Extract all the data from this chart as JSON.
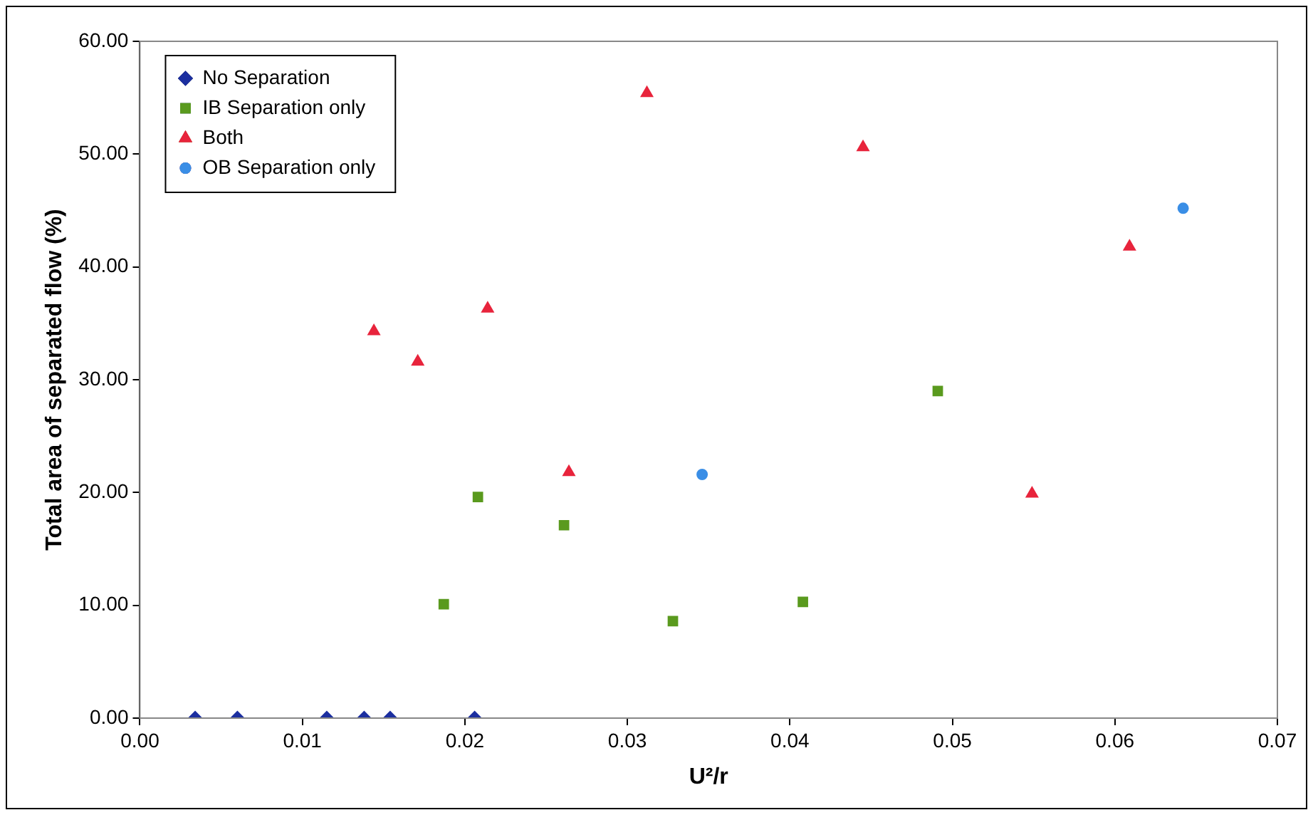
{
  "chart_data": {
    "type": "scatter",
    "xlabel": "U²/r",
    "ylabel": "Total area of separated flow (%)",
    "xlim": [
      0,
      0.07
    ],
    "ylim": [
      0,
      60
    ],
    "xticks": [
      {
        "value": 0,
        "label": "0.00"
      },
      {
        "value": 0.01,
        "label": "0.01"
      },
      {
        "value": 0.02,
        "label": "0.02"
      },
      {
        "value": 0.03,
        "label": "0.03"
      },
      {
        "value": 0.04,
        "label": "0.04"
      },
      {
        "value": 0.05,
        "label": "0.05"
      },
      {
        "value": 0.06,
        "label": "0.06"
      },
      {
        "value": 0.07,
        "label": "0.07"
      }
    ],
    "yticks": [
      {
        "value": 0,
        "label": "0.00"
      },
      {
        "value": 10,
        "label": "10.00"
      },
      {
        "value": 20,
        "label": "20.00"
      },
      {
        "value": 30,
        "label": "30.00"
      },
      {
        "value": 40,
        "label": "40.00"
      },
      {
        "value": 50,
        "label": "50.00"
      },
      {
        "value": 60,
        "label": "60.00"
      }
    ],
    "grid": false,
    "legend": "top left",
    "series": [
      {
        "name": "No Separation",
        "color": "#1c2fa0",
        "marker": "diamond",
        "x": [
          0.0034,
          0.006,
          0.0115,
          0.0138,
          0.0154,
          0.0206
        ],
        "values": [
          0,
          0,
          0,
          0,
          0,
          0
        ]
      },
      {
        "name": "IB Separation only",
        "color": "#5a9a1e",
        "marker": "square",
        "x": [
          0.0187,
          0.0208,
          0.0261,
          0.0328,
          0.0408,
          0.0491
        ],
        "values": [
          10.1,
          19.6,
          17.1,
          8.6,
          10.3,
          29.0
        ]
      },
      {
        "name": "Both",
        "color": "#e8243c",
        "marker": "triangle",
        "x": [
          0.0144,
          0.0171,
          0.0214,
          0.0264,
          0.0312,
          0.0445,
          0.0549,
          0.0609
        ],
        "values": [
          34.3,
          31.6,
          36.3,
          21.8,
          55.4,
          50.6,
          19.9,
          41.8
        ]
      },
      {
        "name": "OB Separation only",
        "color": "#3a8ee6",
        "marker": "circle",
        "x": [
          0.0346,
          0.0642
        ],
        "values": [
          21.6,
          45.2
        ]
      }
    ]
  }
}
